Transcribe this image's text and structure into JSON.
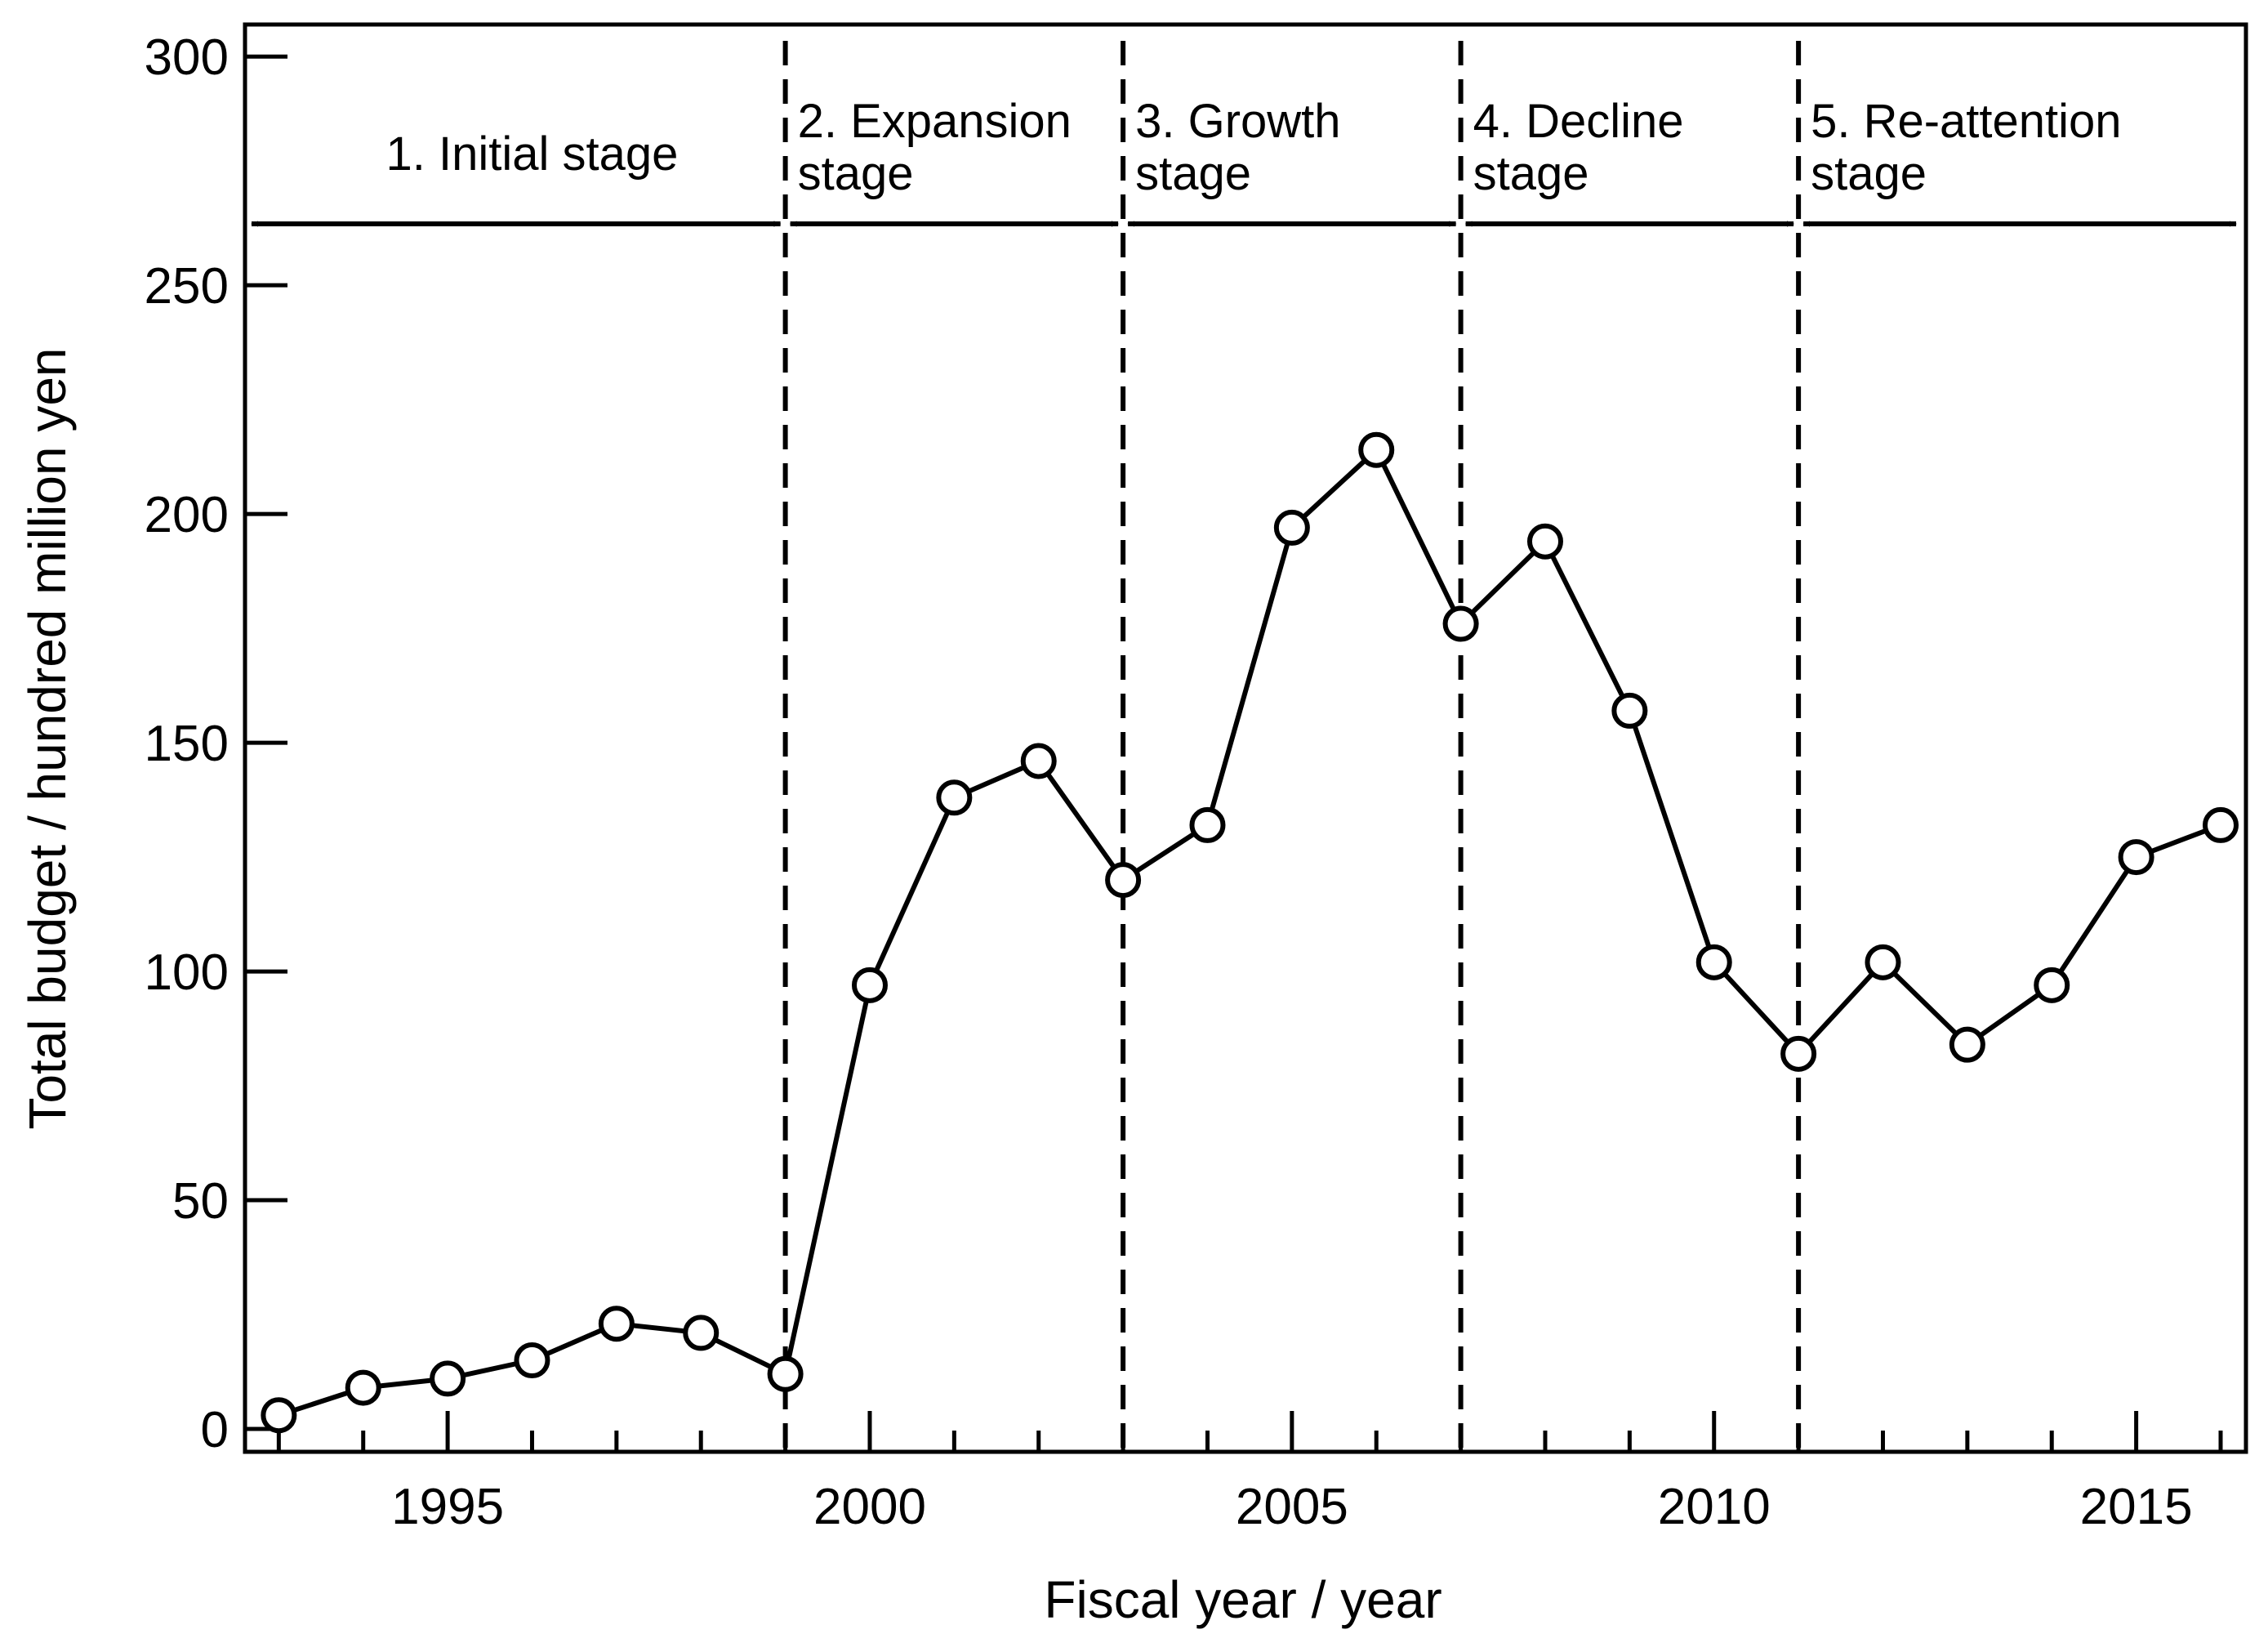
{
  "chart_data": {
    "type": "line",
    "title": "",
    "xlabel": "Fiscal year / year",
    "ylabel": "Total budget / hundred million yen",
    "xlim": [
      1992.6,
      2016.3
    ],
    "ylim": [
      -5,
      307
    ],
    "x_ticks": [
      1995,
      2000,
      2005,
      2010,
      2015
    ],
    "y_ticks": [
      0,
      50,
      100,
      150,
      200,
      250,
      300
    ],
    "grid": false,
    "series": [
      {
        "name": "Total budget",
        "marker": "open-circle",
        "x": [
          1993,
          1994,
          1995,
          1996,
          1997,
          1998,
          1999,
          2000,
          2001,
          2002,
          2003,
          2004,
          2005,
          2006,
          2007,
          2008,
          2009,
          2010,
          2011,
          2012,
          2013,
          2014,
          2015,
          2016
        ],
        "values": [
          3,
          9,
          11,
          15,
          23,
          21,
          12,
          97,
          138,
          146,
          120,
          132,
          197,
          214,
          176,
          194,
          157,
          102,
          82,
          102,
          84,
          97,
          125,
          132
        ]
      }
    ],
    "stage_boundaries": [
      1999,
      2003,
      2007,
      2011
    ],
    "stages": [
      {
        "label_lines": [
          "1. Initial stage"
        ],
        "start": 1993,
        "end": 1999
      },
      {
        "label_lines": [
          "2. Expansion",
          "stage"
        ],
        "start": 1999,
        "end": 2003
      },
      {
        "label_lines": [
          "3. Growth",
          "stage"
        ],
        "start": 2003,
        "end": 2007
      },
      {
        "label_lines": [
          "4. Decline",
          "stage"
        ],
        "start": 2007,
        "end": 2011
      },
      {
        "label_lines": [
          "5. Re-attention",
          "stage"
        ],
        "start": 2011,
        "end": 2016.3
      }
    ]
  }
}
